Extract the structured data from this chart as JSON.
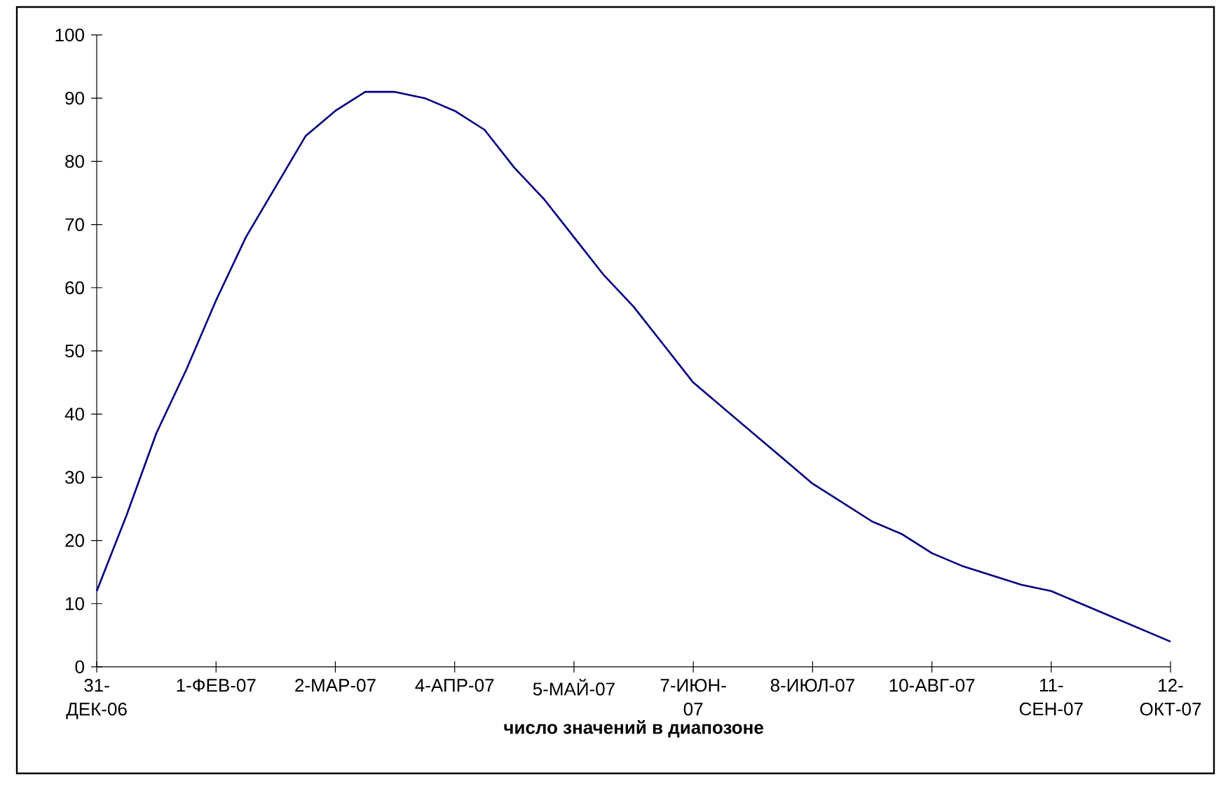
{
  "chart_data": {
    "type": "line",
    "xlabel": "число значений в диапозоне",
    "categories": [
      "31-ДЕК-06",
      null,
      null,
      null,
      "1-ФЕВ-07",
      null,
      null,
      null,
      "2-МАР-07",
      null,
      null,
      null,
      "4-АПР-07",
      null,
      null,
      null,
      "5-МАЙ-07",
      null,
      null,
      null,
      "7-ИЮН-07",
      null,
      null,
      null,
      "8-ИЮЛ-07",
      null,
      null,
      null,
      "10-АВГ-07",
      null,
      null,
      null,
      "11-СЕН-07",
      null,
      null,
      null,
      "12-ОКТ-07"
    ],
    "series": [
      {
        "color": "#000080",
        "values": [
          12,
          24,
          37,
          47,
          58,
          68,
          76,
          84,
          88,
          91,
          91,
          90,
          88,
          85,
          79,
          74,
          68,
          62,
          57,
          51,
          45,
          41,
          37,
          33,
          29,
          26,
          23,
          21,
          18,
          16,
          14.5,
          13,
          12,
          10,
          8,
          6,
          4
        ]
      }
    ],
    "ylim": [
      0,
      100
    ],
    "yticks": [
      0,
      10,
      20,
      30,
      40,
      50,
      60,
      70,
      80,
      90,
      100
    ],
    "grid": false,
    "legend": false,
    "marker": "none",
    "line_style": "solid"
  }
}
